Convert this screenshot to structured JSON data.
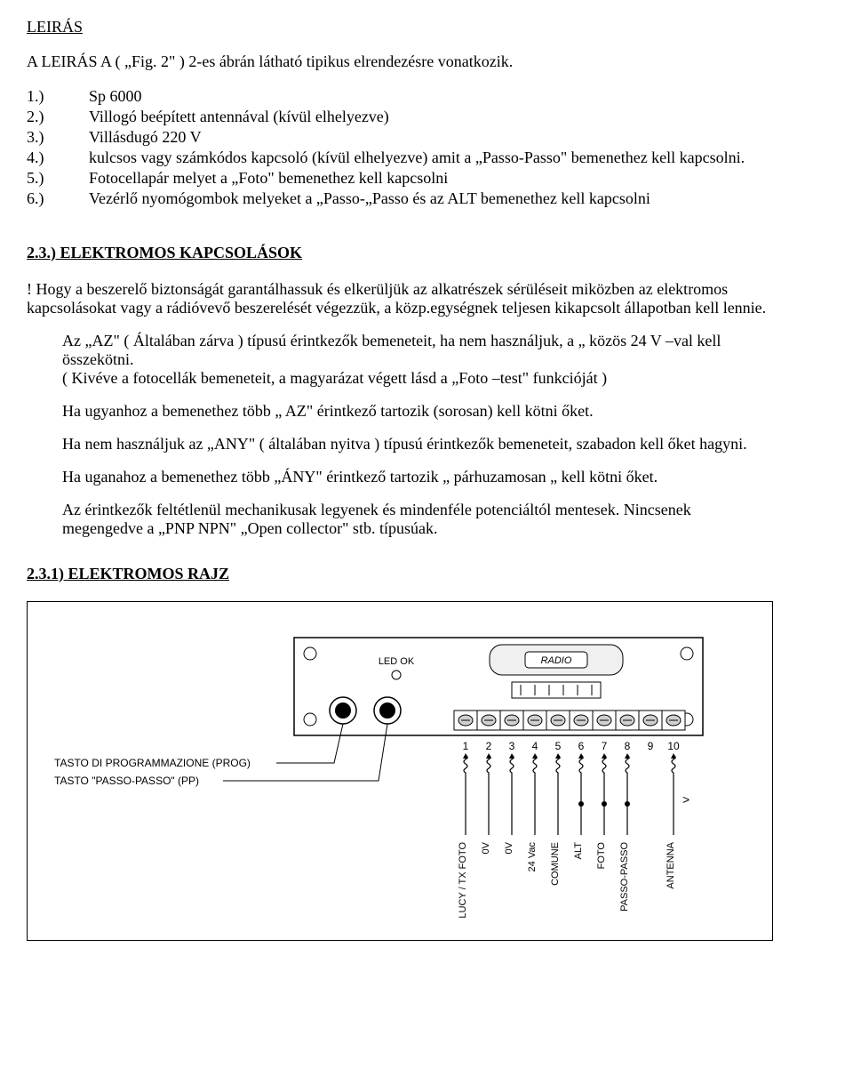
{
  "doc": {
    "title1": "LEIRÁS",
    "intro": "A LEIRÁS A ( „Fig. 2\" ) 2-es   ábrán  látható  tipikus elrendezésre vonatkozik.",
    "list": [
      {
        "n": "1.)",
        "t": "Sp 6000"
      },
      {
        "n": "2.)",
        "t": "Villogó beépített antennával (kívül elhelyezve)"
      },
      {
        "n": "3.)",
        "t": "Villásdugó  220 V"
      },
      {
        "n": "4.)",
        "t": "kulcsos vagy számkódos  kapcsoló (kívül elhelyezve)  amit a „Passo-Passo\"  bemenethez kell kapcsolni."
      },
      {
        "n": "5.)",
        "t": "Fotocellapár melyet a „Foto\"  bemenethez kell kapcsolni"
      },
      {
        "n": "6.)",
        "t": "Vezérlő nyomógombok melyeket a „Passo-„Passo  és  az  ALT  bemenethez kell kapcsolni"
      }
    ],
    "h2a": "2.3.) ELEKTROMOS KAPCSOLÁSOK",
    "warn": "!  Hogy  a beszerelő biztonságát garantálhassuk és elkerüljük az alkatrészek sérüléseit  miközben az elektromos kapcsolásokat vagy a rádióvevő beszerelését végezzük, a közp.egységnek teljesen kikapcsolt állapotban kell lennie.",
    "p1a": "Az „AZ\"  ( Általában zárva ) típusú érintkezők bemeneteit, ha nem használjuk, a „ közös 24 V –val kell összekötni.",
    "p1b": "( Kivéve a fotocellák bemeneteit, a magyarázat végett lásd a „Foto –test\" funkcióját )",
    "p2": "Ha ugyanhoz a bemenethez több „ AZ\"  érintkező tartozik (sorosan) kell kötni őket.",
    "p3": "Ha nem használjuk az „ANY\"  ( általában nyitva )  típusú érintkezők bemeneteit, szabadon kell őket hagyni.",
    "p4": "Ha uganahoz a bemenethez több „ÁNY\"  érintkező tartozik „ párhuzamosan „  kell  kötni őket.",
    "p5": "Az érintkezők feltétlenül  mechanikusak legyenek és mindenféle potenciáltól mentesek. Nincsenek megengedve a „PNP  NPN\" „Open collector\" stb.  típusúak.",
    "h2b": "2.3.1) ELEKTROMOS  RAJZ",
    "diagram": {
      "radio_label": "RADIO",
      "led_label": "LED OK",
      "btn1_label": "TASTO DI PROGRAMMAZIONE (PROG)",
      "btn2_label": "TASTO \"PASSO-PASSO\" (PP)",
      "terminal_numbers": [
        "1",
        "2",
        "3",
        "4",
        "5",
        "6",
        "7",
        "8",
        "9",
        "10"
      ],
      "terminal_labels": [
        "LUCY / TX FOTO",
        "0V",
        "0V",
        "24 Vac",
        "COMUNE",
        "ALT",
        "FOTO",
        "PASSO-PASSO",
        "",
        "ANTENNA"
      ],
      "antenna_arrow": ">",
      "colors": {
        "stroke": "#000000",
        "fill_light": "#f0f0f0",
        "fill_mid": "#d0d0d0",
        "text": "#000000"
      },
      "font": {
        "family": "Arial",
        "size_small": 11,
        "size_label": 12
      }
    }
  }
}
